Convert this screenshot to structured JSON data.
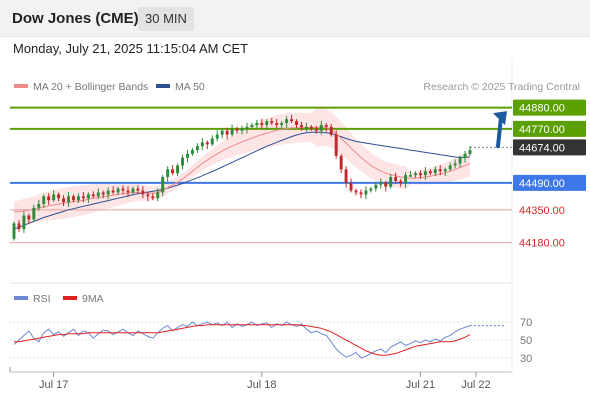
{
  "header": {
    "title": "Dow Jones (CME)",
    "timeframe": "30 MIN"
  },
  "datetime": "Monday, July 21, 2025 11:15:04 AM CET",
  "legend": [
    {
      "label": "MA 20 + Bollinger Bands",
      "color": "#f08a8a"
    },
    {
      "label": "MA 50",
      "color": "#2d4f93"
    }
  ],
  "attribution": "Research © 2025 Trading Central",
  "colors": {
    "up": "#2e8b3a",
    "down": "#c0282a",
    "resistance": "#5aa000",
    "support": "#3e78e8",
    "pivot_box": "#333333",
    "target_red": "#d02828",
    "arrow": "#1e5aa0",
    "band_fill": "#fde0e0",
    "rsi": "#6d88d4",
    "rsi_ma": "#e02020"
  },
  "chart_data": [
    {
      "type": "candlestick",
      "title": "Dow Jones (CME)",
      "ylim": [
        43960,
        44930
      ],
      "x_ticks": [
        "Jul 17",
        "Jul 18",
        "Jul 21",
        "Jul 22"
      ],
      "levels": [
        {
          "label": "44880.00",
          "value": 44880,
          "role": "resistance"
        },
        {
          "label": "44770.00",
          "value": 44770,
          "role": "resistance"
        },
        {
          "label": "44674.00",
          "value": 44674,
          "role": "pivot"
        },
        {
          "label": "44490.00",
          "value": 44490,
          "role": "support"
        },
        {
          "label": "44350.00",
          "value": 44350,
          "role": "target"
        },
        {
          "label": "44180.00",
          "value": 44180,
          "role": "target"
        }
      ],
      "closes": [
        44280,
        44250,
        44320,
        44300,
        44360,
        44380,
        44420,
        44400,
        44430,
        44410,
        44390,
        44420,
        44400,
        44420,
        44410,
        44430,
        44420,
        44440,
        44430,
        44450,
        44440,
        44460,
        44450,
        44440,
        44460,
        44450,
        44430,
        44420,
        44410,
        44440,
        44520,
        44560,
        44540,
        44580,
        44620,
        44640,
        44660,
        44680,
        44700,
        44690,
        44720,
        44740,
        44760,
        44740,
        44770,
        44760,
        44770,
        44780,
        44790,
        44800,
        44790,
        44810,
        44800,
        44790,
        44800,
        44820,
        44810,
        44790,
        44780,
        44780,
        44770,
        44760,
        44790,
        44780,
        44740,
        44630,
        44560,
        44490,
        44450,
        44440,
        44430,
        44450,
        44460,
        44480,
        44490,
        44470,
        44520,
        44500,
        44490,
        44530,
        44530,
        44540,
        44530,
        44550,
        44540,
        44560,
        44550,
        44560,
        44580,
        44590,
        44620,
        44640,
        44660
      ],
      "series": [
        {
          "name": "MA 20 + Bollinger Bands",
          "values": [
            44340,
            44340,
            44345,
            44348,
            44352,
            44358,
            44365,
            44370,
            44375,
            44380,
            44384,
            44388,
            44392,
            44396,
            44400,
            44405,
            44410,
            44414,
            44418,
            44422,
            44426,
            44430,
            44433,
            44436,
            44440,
            44440,
            44438,
            44436,
            44436,
            44440,
            44450,
            44465,
            44478,
            44492,
            44510,
            44530,
            44550,
            44570,
            44590,
            44608,
            44625,
            44640,
            44655,
            44668,
            44680,
            44692,
            44702,
            44712,
            44722,
            44732,
            44740,
            44748,
            44755,
            44762,
            44768,
            44772,
            44775,
            44776,
            44777,
            44777,
            44778,
            44778,
            44778,
            44776,
            44765,
            44745,
            44722,
            44696,
            44670,
            44645,
            44622,
            44600,
            44580,
            44565,
            44552,
            44540,
            44532,
            44526,
            44520,
            44516,
            44514,
            44514,
            44516,
            44520,
            44524,
            44530,
            44536,
            44542,
            44550,
            44560,
            44570,
            44580,
            44590
          ]
        },
        {
          "name": "MA 50",
          "values": [
            44250,
            44260,
            44270,
            44280,
            44290,
            44300,
            44310,
            44318,
            44326,
            44334,
            44342,
            44350,
            44356,
            44362,
            44368,
            44374,
            44380,
            44386,
            44392,
            44398,
            44404,
            44410,
            44416,
            44422,
            44428,
            44433,
            44438,
            44442,
            44446,
            44450,
            44456,
            44462,
            44470,
            44478,
            44487,
            44496,
            44506,
            44516,
            44527,
            44538,
            44549,
            44560,
            44572,
            44584,
            44596,
            44608,
            44620,
            44632,
            44644,
            44656,
            44668,
            44680,
            44690,
            44700,
            44710,
            44720,
            44730,
            44738,
            44745,
            44750,
            44752,
            44753,
            44752,
            44750,
            44746,
            44738,
            44730,
            44720,
            44712,
            44705,
            44700,
            44696,
            44692,
            44688,
            44684,
            44680,
            44676,
            44672,
            44668,
            44664,
            44660,
            44656,
            44652,
            44648,
            44644,
            44640,
            44636,
            44632,
            44628,
            44624,
            44622,
            44622,
            44624
          ]
        }
      ]
    },
    {
      "type": "line",
      "title": "RSI",
      "ylim": [
        20,
        80
      ],
      "y_ticks": [
        70,
        50,
        30
      ],
      "series": [
        {
          "name": "RSI",
          "values": [
            45,
            50,
            55,
            60,
            52,
            48,
            58,
            62,
            56,
            59,
            54,
            58,
            62,
            55,
            60,
            58,
            52,
            57,
            61,
            60,
            56,
            59,
            62,
            58,
            55,
            60,
            57,
            54,
            52,
            58,
            63,
            66,
            60,
            64,
            67,
            65,
            70,
            66,
            68,
            70,
            67,
            69,
            66,
            70,
            64,
            68,
            65,
            67,
            70,
            66,
            68,
            69,
            64,
            68,
            66,
            70,
            67,
            65,
            68,
            62,
            58,
            60,
            57,
            55,
            48,
            40,
            35,
            31,
            33,
            36,
            30,
            32,
            35,
            38,
            40,
            36,
            42,
            45,
            48,
            44,
            46,
            49,
            47,
            50,
            48,
            51,
            49,
            53,
            55,
            59,
            62,
            64,
            66
          ]
        },
        {
          "name": "9MA",
          "values": [
            48,
            48,
            49,
            50,
            51,
            52,
            53,
            54,
            55,
            56,
            56,
            57,
            57,
            57,
            57,
            58,
            58,
            58,
            58,
            58,
            58,
            58,
            58,
            58,
            58,
            58,
            58,
            58,
            58,
            58,
            59,
            60,
            61,
            62,
            63,
            64,
            65,
            66,
            66,
            67,
            67,
            67,
            67,
            67,
            67,
            67,
            67,
            67,
            67,
            67,
            67,
            67,
            67,
            67,
            67,
            67,
            67,
            67,
            66,
            66,
            65,
            64,
            63,
            61,
            59,
            56,
            53,
            50,
            47,
            44,
            41,
            38,
            36,
            34,
            33,
            33,
            34,
            35,
            37,
            39,
            41,
            43,
            44,
            45,
            46,
            47,
            48,
            48,
            48,
            49,
            51,
            53,
            56
          ]
        }
      ]
    }
  ]
}
